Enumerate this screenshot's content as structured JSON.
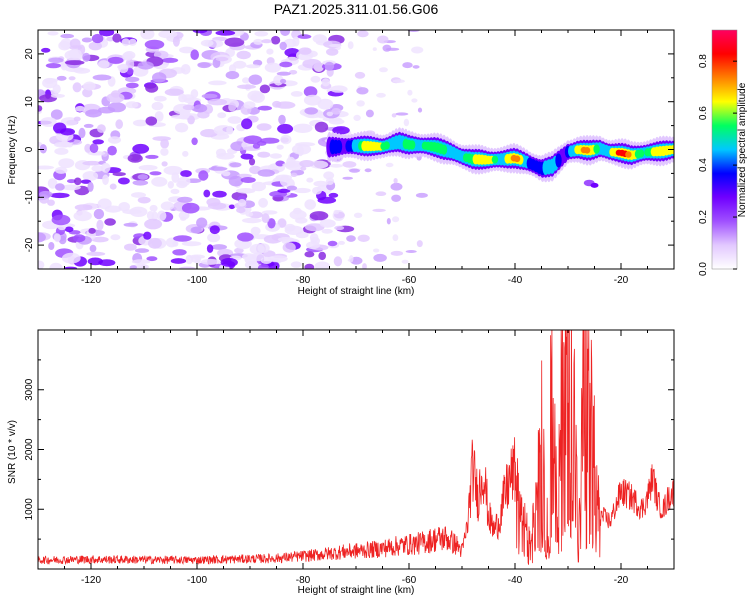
{
  "title": "PAZ1.2025.311.01.56.G06",
  "chart_data": [
    {
      "type": "heatmap",
      "xlabel": "Height of straight line (km)",
      "ylabel": "Frequency (Hz)",
      "xlim": [
        -130,
        -10
      ],
      "ylim": [
        -25,
        25
      ],
      "xticks": [
        -120,
        -100,
        -80,
        -60,
        -40,
        -20
      ],
      "yticks": [
        -20,
        -10,
        0,
        10,
        20
      ],
      "colorbar": {
        "label": "Normalized spectral amplitude",
        "range": [
          0,
          0.92
        ],
        "ticks": [
          0.0,
          0.2,
          0.4,
          0.6,
          0.8
        ],
        "tick_labels": [
          "0.0",
          "0.2",
          "0.4",
          "0.6",
          "0.8"
        ],
        "colors": [
          "#ffffff",
          "#e2c8ff",
          "#a050ff",
          "#7000ff",
          "#0000ff",
          "#00c8ff",
          "#00ff60",
          "#ffff00",
          "#ff8000",
          "#ff0000",
          "#ff0060"
        ]
      },
      "ridge": {
        "x": [
          -75,
          -70,
          -65,
          -62,
          -60,
          -57,
          -55,
          -52,
          -50,
          -48,
          -45,
          -42,
          -40,
          -38,
          -35,
          -33,
          -31,
          -30,
          -28,
          -26,
          -24,
          -22,
          -20,
          -18,
          -15,
          -12,
          -10
        ],
        "y": [
          0.5,
          0.8,
          0.6,
          1.6,
          1.0,
          0.8,
          0.5,
          -0.5,
          -1.5,
          -2.0,
          -2.2,
          -2.0,
          -1.8,
          -2.5,
          -4.0,
          -3.5,
          -1.5,
          -0.5,
          0.0,
          -0.2,
          0.2,
          -0.5,
          -0.7,
          -1.2,
          -0.6,
          -0.3,
          0.0
        ],
        "amplitude": [
          0.35,
          0.55,
          0.8,
          0.5,
          0.6,
          0.75,
          0.6,
          0.55,
          0.7,
          0.6,
          0.85,
          0.6,
          0.8,
          0.55,
          0.45,
          0.5,
          0.4,
          0.5,
          0.8,
          0.75,
          0.6,
          0.7,
          0.9,
          0.75,
          0.7,
          0.65,
          0.75
        ]
      },
      "noise_region_x": [
        -130,
        -75
      ],
      "sparse_region_x": [
        -75,
        -57
      ]
    },
    {
      "type": "line",
      "xlabel": "Height of straight line (km)",
      "ylabel": "SNR (10 * v/v)",
      "xlim": [
        -130,
        -10
      ],
      "ylim": [
        0,
        4000
      ],
      "xticks": [
        -120,
        -100,
        -80,
        -60,
        -40,
        -20
      ],
      "yticks": [
        1000,
        2000,
        3000
      ],
      "series": [
        {
          "name": "SNR",
          "color": "#ee2222",
          "x": [
            -130,
            -120,
            -100,
            -85,
            -78,
            -72,
            -66,
            -62,
            -58,
            -55,
            -53,
            -51,
            -50,
            -49,
            -48,
            -47,
            -46,
            -45,
            -44,
            -43,
            -42,
            -41,
            -40,
            -39,
            -38,
            -37,
            -36,
            -35,
            -34,
            -33,
            -32,
            -31,
            -30,
            -29,
            -28,
            -27,
            -26,
            -25,
            -24,
            -22,
            -20,
            -18,
            -16,
            -15,
            -14,
            -13,
            -12,
            -11,
            -10
          ],
          "y": [
            150,
            160,
            150,
            180,
            230,
            290,
            330,
            390,
            430,
            500,
            520,
            400,
            300,
            700,
            1700,
            1200,
            1700,
            900,
            650,
            800,
            1200,
            1500,
            1650,
            1100,
            800,
            400,
            1500,
            2400,
            700,
            2800,
            600,
            3100,
            3900,
            2900,
            300,
            3000,
            2400,
            1700,
            900,
            800,
            1300,
            1200,
            1000,
            1200,
            1550,
            1100,
            1000,
            1200,
            1300
          ]
        }
      ]
    }
  ]
}
